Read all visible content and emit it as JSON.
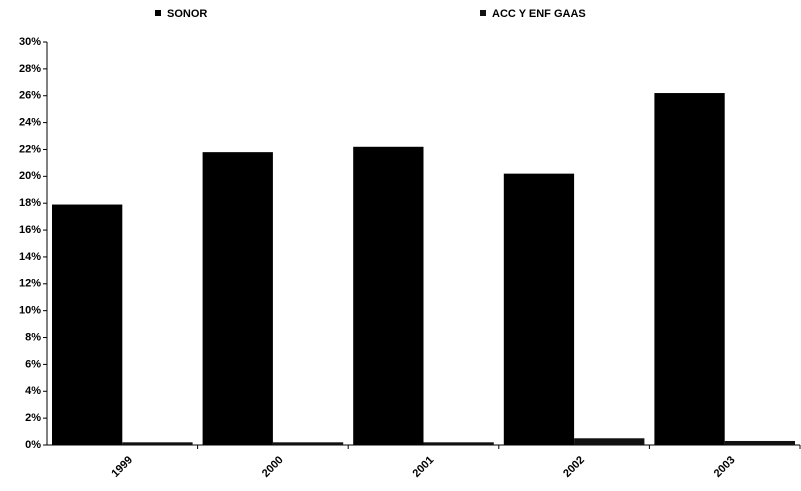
{
  "chart_data": {
    "type": "bar",
    "categories": [
      "1999",
      "2000",
      "2001",
      "2002",
      "2003"
    ],
    "series": [
      {
        "name": "SONOR",
        "color": "#000000",
        "values": [
          17.9,
          21.8,
          22.2,
          20.2,
          26.2
        ]
      },
      {
        "name": "ACC Y ENF GAAS",
        "color": "#111111",
        "values": [
          0.2,
          0.2,
          0.2,
          0.5,
          0.3
        ]
      }
    ],
    "ylim": [
      0,
      30
    ],
    "yticks": [
      {
        "value": 0,
        "label": "0%"
      },
      {
        "value": 2,
        "label": "2%"
      },
      {
        "value": 4,
        "label": "4%"
      },
      {
        "value": 6,
        "label": "6%"
      },
      {
        "value": 8,
        "label": "8%"
      },
      {
        "value": 10,
        "label": "10%"
      },
      {
        "value": 12,
        "label": "12%"
      },
      {
        "value": 14,
        "label": "14%"
      },
      {
        "value": 16,
        "label": "16%"
      },
      {
        "value": 18,
        "label": "18%"
      },
      {
        "value": 20,
        "label": "20%"
      },
      {
        "value": 22,
        "label": "22%"
      },
      {
        "value": 24,
        "label": "24%"
      },
      {
        "value": 26,
        "label": "26%"
      },
      {
        "value": 28,
        "label": "28%"
      },
      {
        "value": 30,
        "label": "30%"
      }
    ],
    "grid": false,
    "legend": "top"
  }
}
